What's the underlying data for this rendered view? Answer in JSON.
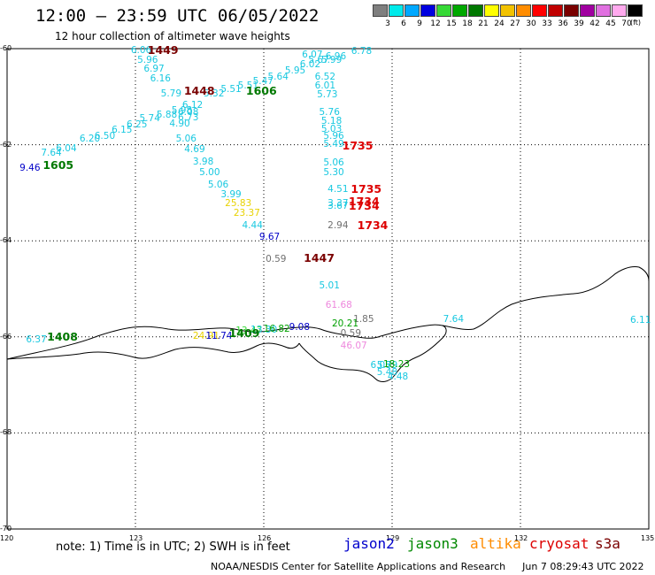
{
  "header": {
    "title": "12:00 – 23:59 UTC 06/05/2022",
    "subtitle": "12 hour collection of altimeter wave heights"
  },
  "color_scale": {
    "unit": "(ft)",
    "bins": [
      {
        "color": "#7f7f7f",
        "label": "3"
      },
      {
        "color": "#00eaea",
        "label": "6"
      },
      {
        "color": "#00a8ff",
        "label": "9"
      },
      {
        "color": "#0000e0",
        "label": "12"
      },
      {
        "color": "#36d936",
        "label": "15"
      },
      {
        "color": "#00a800",
        "label": "18"
      },
      {
        "color": "#007800",
        "label": "21"
      },
      {
        "color": "#ffff00",
        "label": "24"
      },
      {
        "color": "#f2c200",
        "label": "27"
      },
      {
        "color": "#ff8c00",
        "label": "30"
      },
      {
        "color": "#ff0000",
        "label": "33"
      },
      {
        "color": "#c00000",
        "label": "36"
      },
      {
        "color": "#7a0000",
        "label": "39"
      },
      {
        "color": "#a000a0",
        "label": "42"
      },
      {
        "color": "#e070e0",
        "label": "45"
      },
      {
        "color": "#ffaaee",
        "label": "70"
      },
      {
        "color": "#000000",
        "label": ""
      }
    ]
  },
  "map": {
    "lon_range": [
      120,
      135
    ],
    "lat_range": [
      -70,
      -60
    ],
    "lon_ticks": [
      {
        "value": 123,
        "label": "123"
      },
      {
        "value": 126,
        "label": "126"
      },
      {
        "value": 129,
        "label": "129"
      },
      {
        "value": 132,
        "label": "132"
      }
    ],
    "lat_ticks": [
      {
        "value": -62,
        "label": "-62"
      },
      {
        "value": -64,
        "label": "-64"
      },
      {
        "value": -66,
        "label": "-66"
      },
      {
        "value": -68,
        "label": "-68"
      }
    ],
    "corner_labels": {
      "top_left": "-60",
      "bottom_left": "-70",
      "bottom_left_lon": "120",
      "bottom_right_lon": "135"
    },
    "colors": {
      "frame": "#000000",
      "grid": "#000000",
      "coast": "#000000",
      "cyan_obs": "#18c8e0",
      "teal_obs": "#00b8d0",
      "blue_obs": "#0000c8",
      "green_obs": "#00a000",
      "yellow_obs": "#e8d200",
      "gray_obs": "#707070",
      "pink_obs": "#ee88dd",
      "darkred": "#7a0000",
      "red": "#dd0000",
      "darkgreen": "#007800"
    },
    "observations": [
      {
        "lon": 120.5,
        "lat": -62.5,
        "text": "9.46",
        "color": "#0000c8"
      },
      {
        "lon": 121.0,
        "lat": -62.2,
        "text": "7.64",
        "color": "#18c8e0"
      },
      {
        "lon": 121.35,
        "lat": -62.1,
        "text": "6.04",
        "color": "#18c8e0"
      },
      {
        "lon": 121.9,
        "lat": -61.9,
        "text": "6.20",
        "color": "#18c8e0"
      },
      {
        "lon": 122.25,
        "lat": -61.85,
        "text": "6.50",
        "color": "#18c8e0"
      },
      {
        "lon": 122.65,
        "lat": -61.72,
        "text": "6.15",
        "color": "#18c8e0"
      },
      {
        "lon": 123.0,
        "lat": -61.6,
        "text": "6.25",
        "color": "#18c8e0"
      },
      {
        "lon": 123.3,
        "lat": -61.48,
        "text": "5.74",
        "color": "#18c8e0"
      },
      {
        "lon": 123.7,
        "lat": -61.4,
        "text": "5.88",
        "color": "#18c8e0"
      },
      {
        "lon": 124.05,
        "lat": -61.3,
        "text": "5.98",
        "color": "#18c8e0"
      },
      {
        "lon": 124.3,
        "lat": -61.2,
        "text": "6.12",
        "color": "#18c8e0"
      },
      {
        "lon": 124.2,
        "lat": -61.35,
        "text": "6.08",
        "color": "#18c8e0"
      },
      {
        "lon": 124.2,
        "lat": -61.45,
        "text": "6.73",
        "color": "#18c8e0"
      },
      {
        "lon": 124.0,
        "lat": -61.58,
        "text": "4.90",
        "color": "#18c8e0"
      },
      {
        "lon": 124.15,
        "lat": -61.9,
        "text": "5.06",
        "color": "#18c8e0"
      },
      {
        "lon": 124.35,
        "lat": -62.12,
        "text": "4.69",
        "color": "#18c8e0"
      },
      {
        "lon": 124.55,
        "lat": -62.38,
        "text": "3.98",
        "color": "#18c8e0"
      },
      {
        "lon": 124.7,
        "lat": -62.6,
        "text": "5.00",
        "color": "#18c8e0"
      },
      {
        "lon": 124.9,
        "lat": -62.85,
        "text": "5.06",
        "color": "#18c8e0"
      },
      {
        "lon": 125.2,
        "lat": -63.05,
        "text": "3.99",
        "color": "#18c8e0"
      },
      {
        "lon": 125.3,
        "lat": -63.25,
        "text": "25.83",
        "color": "#e8d200"
      },
      {
        "lon": 125.5,
        "lat": -63.45,
        "text": "23.37",
        "color": "#e8d200"
      },
      {
        "lon": 125.7,
        "lat": -63.7,
        "text": "4.44",
        "color": "#18c8e0"
      },
      {
        "lon": 126.1,
        "lat": -63.95,
        "text": "9.67",
        "color": "#0000c8"
      },
      {
        "lon": 123.1,
        "lat": -60.05,
        "text": "6.06",
        "color": "#18c8e0"
      },
      {
        "lon": 123.25,
        "lat": -60.25,
        "text": "5.96",
        "color": "#18c8e0"
      },
      {
        "lon": 123.4,
        "lat": -60.45,
        "text": "6.97",
        "color": "#18c8e0"
      },
      {
        "lon": 123.55,
        "lat": -60.65,
        "text": "6.16",
        "color": "#18c8e0"
      },
      {
        "lon": 123.8,
        "lat": -60.95,
        "text": "5.79",
        "color": "#18c8e0"
      },
      {
        "lon": 124.8,
        "lat": -60.95,
        "text": "5.32",
        "color": "#18c8e0"
      },
      {
        "lon": 125.2,
        "lat": -60.87,
        "text": "5.51",
        "color": "#18c8e0"
      },
      {
        "lon": 125.6,
        "lat": -60.8,
        "text": "5.51",
        "color": "#18c8e0"
      },
      {
        "lon": 125.95,
        "lat": -60.7,
        "text": "5.47",
        "color": "#18c8e0"
      },
      {
        "lon": 126.3,
        "lat": -60.6,
        "text": "5.64",
        "color": "#18c8e0"
      },
      {
        "lon": 126.7,
        "lat": -60.48,
        "text": "5.95",
        "color": "#18c8e0"
      },
      {
        "lon": 127.05,
        "lat": -60.35,
        "text": "6.02",
        "color": "#18c8e0"
      },
      {
        "lon": 127.1,
        "lat": -60.15,
        "text": "6.07",
        "color": "#18c8e0"
      },
      {
        "lon": 127.25,
        "lat": -60.25,
        "text": "5.67",
        "color": "#18c8e0"
      },
      {
        "lon": 127.55,
        "lat": -60.25,
        "text": "5.99",
        "color": "#18c8e0"
      },
      {
        "lon": 127.65,
        "lat": -60.18,
        "text": "6.96",
        "color": "#18c8e0"
      },
      {
        "lon": 128.25,
        "lat": -60.08,
        "text": "6.78",
        "color": "#18c8e0"
      },
      {
        "lon": 127.4,
        "lat": -60.6,
        "text": "6.52",
        "color": "#18c8e0"
      },
      {
        "lon": 127.4,
        "lat": -60.8,
        "text": "6.01",
        "color": "#18c8e0"
      },
      {
        "lon": 127.45,
        "lat": -60.98,
        "text": "5.73",
        "color": "#18c8e0"
      },
      {
        "lon": 127.5,
        "lat": -61.35,
        "text": "5.76",
        "color": "#18c8e0"
      },
      {
        "lon": 127.55,
        "lat": -61.52,
        "text": "5.18",
        "color": "#18c8e0"
      },
      {
        "lon": 127.55,
        "lat": -61.7,
        "text": "5.03",
        "color": "#18c8e0"
      },
      {
        "lon": 127.6,
        "lat": -61.85,
        "text": "5.96",
        "color": "#18c8e0"
      },
      {
        "lon": 127.6,
        "lat": -62.0,
        "text": "5.49",
        "color": "#18c8e0"
      },
      {
        "lon": 127.6,
        "lat": -62.4,
        "text": "5.06",
        "color": "#18c8e0"
      },
      {
        "lon": 127.6,
        "lat": -62.6,
        "text": "5.30",
        "color": "#18c8e0"
      },
      {
        "lon": 127.7,
        "lat": -62.95,
        "text": "4.51",
        "color": "#18c8e0"
      },
      {
        "lon": 127.7,
        "lat": -63.25,
        "text": "3.37",
        "color": "#18c8e0"
      },
      {
        "lon": 127.7,
        "lat": -63.3,
        "text": "3.67",
        "color": "#18c8e0"
      },
      {
        "lon": 127.7,
        "lat": -63.7,
        "text": "2.94",
        "color": "#707070"
      },
      {
        "lon": 126.25,
        "lat": -64.4,
        "text": "0.59",
        "color": "#707070"
      },
      {
        "lon": 127.5,
        "lat": -64.95,
        "text": "5.01",
        "color": "#18c8e0"
      },
      {
        "lon": 127.65,
        "lat": -65.35,
        "text": "61.68",
        "color": "#ee88dd"
      },
      {
        "lon": 128.3,
        "lat": -65.65,
        "text": "1.85",
        "color": "#707070"
      },
      {
        "lon": 127.8,
        "lat": -65.75,
        "text": "20.21",
        "color": "#00a000"
      },
      {
        "lon": 128.0,
        "lat": -65.95,
        "text": "0.59",
        "color": "#707070"
      },
      {
        "lon": 128.0,
        "lat": -66.2,
        "text": "46.07",
        "color": "#ee88dd"
      },
      {
        "lon": 130.4,
        "lat": -65.65,
        "text": "7.64",
        "color": "#18c8e0"
      },
      {
        "lon": 134.8,
        "lat": -65.68,
        "text": "6.11",
        "color": "#18c8e0"
      },
      {
        "lon": 120.65,
        "lat": -66.08,
        "text": "6.37",
        "color": "#18c8e0"
      },
      {
        "lon": 124.55,
        "lat": -66.0,
        "text": "24.91",
        "color": "#e8d200"
      },
      {
        "lon": 124.85,
        "lat": -66.0,
        "text": "11.74",
        "color": "#0000c8"
      },
      {
        "lon": 125.55,
        "lat": -65.9,
        "text": "13.47",
        "color": "#36d936"
      },
      {
        "lon": 125.9,
        "lat": -65.88,
        "text": "13.30",
        "color": "#18c8e0"
      },
      {
        "lon": 126.2,
        "lat": -65.85,
        "text": "16.82",
        "color": "#00a000"
      },
      {
        "lon": 126.8,
        "lat": -65.82,
        "text": "9.08",
        "color": "#0000c8"
      },
      {
        "lon": 128.7,
        "lat": -66.62,
        "text": "6.08",
        "color": "#18c8e0"
      },
      {
        "lon": 128.85,
        "lat": -66.62,
        "text": "5.79",
        "color": "#18c8e0"
      },
      {
        "lon": 129.0,
        "lat": -66.6,
        "text": "18.23",
        "color": "#00a000"
      },
      {
        "lon": 128.85,
        "lat": -66.75,
        "text": "5.48",
        "color": "#18c8e0"
      },
      {
        "lon": 129.1,
        "lat": -66.85,
        "text": "4.48",
        "color": "#18c8e0"
      }
    ],
    "track_labels": [
      {
        "lon": 123.45,
        "lat": -60.05,
        "text": "1449",
        "color": "#7a0000"
      },
      {
        "lon": 124.3,
        "lat": -60.9,
        "text": "1448",
        "color": "#7a0000"
      },
      {
        "lon": 125.75,
        "lat": -60.9,
        "text": "1606",
        "color": "#007800"
      },
      {
        "lon": 121.0,
        "lat": -62.45,
        "text": "1605",
        "color": "#007800"
      },
      {
        "lon": 128.0,
        "lat": -62.05,
        "text": "1735",
        "color": "#dd0000"
      },
      {
        "lon": 128.2,
        "lat": -62.95,
        "text": "1735",
        "color": "#dd0000"
      },
      {
        "lon": 128.15,
        "lat": -63.2,
        "text": "1734",
        "color": "#dd0000"
      },
      {
        "lon": 128.15,
        "lat": -63.3,
        "text": "1734",
        "color": "#dd0000"
      },
      {
        "lon": 128.35,
        "lat": -63.7,
        "text": "1734",
        "color": "#dd0000"
      },
      {
        "lon": 127.1,
        "lat": -64.38,
        "text": "1447",
        "color": "#7a0000"
      },
      {
        "lon": 121.1,
        "lat": -66.02,
        "text": "1408",
        "color": "#007800"
      },
      {
        "lon": 125.35,
        "lat": -65.95,
        "text": "1409",
        "color": "#007800"
      }
    ]
  },
  "legend": {
    "note": "note:  1) Time is in UTC; 2) SWH is in feet",
    "satellites": [
      {
        "name": "jason2",
        "color": "#0000cc"
      },
      {
        "name": "jason3",
        "color": "#008800"
      },
      {
        "name": "altika",
        "color": "#ff8c00"
      },
      {
        "name": "cryosat",
        "color": "#dd0000"
      },
      {
        "name": "s3a",
        "color": "#7a0000"
      }
    ]
  },
  "footer": {
    "credit": "NOAA/NESDIS Center for Satellite Applications and Research",
    "timestamp": "Jun  7 08:29:43 UTC 2022"
  }
}
